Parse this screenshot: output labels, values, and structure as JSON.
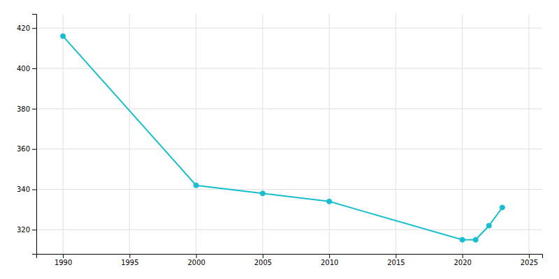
{
  "chart_data": {
    "type": "line",
    "x": [
      1990,
      2000,
      2005,
      2010,
      2020,
      2021,
      2022,
      2023
    ],
    "values": [
      416,
      342,
      338,
      334,
      315,
      315,
      322,
      331
    ],
    "color": "#17becf",
    "marker": "circle",
    "xlim": [
      1988,
      2026
    ],
    "ylim": [
      308,
      427
    ],
    "xticks": [
      1990,
      1995,
      2000,
      2005,
      2010,
      2015,
      2020,
      2025
    ],
    "yticks": [
      320,
      340,
      360,
      380,
      400,
      420
    ],
    "grid": true
  }
}
